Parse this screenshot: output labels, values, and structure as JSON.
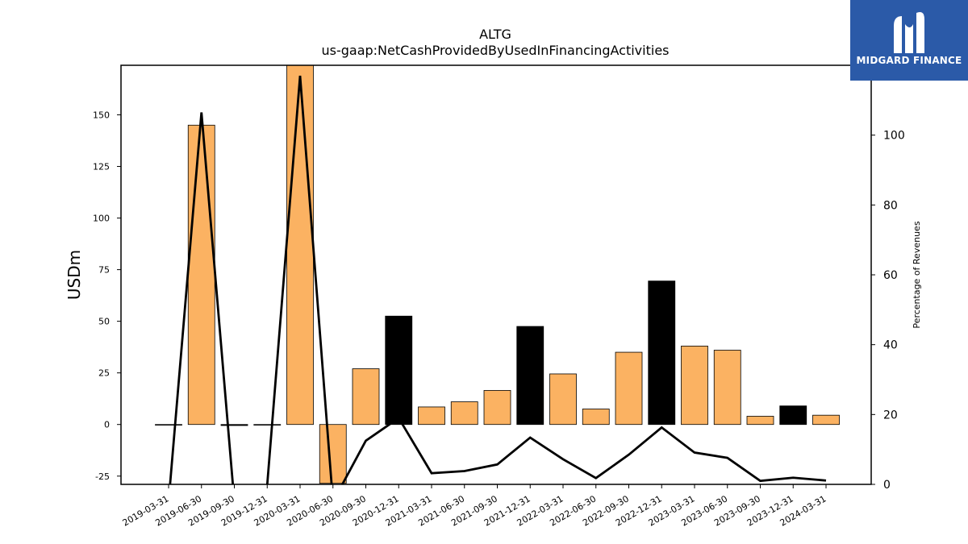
{
  "chart_data": {
    "type": "bar",
    "title": "ALTG",
    "subtitle": "us-gaap:NetCashProvidedByUsedInFinancingActivities",
    "ylabel": "USDm",
    "y2label": "Percentage of Revenues",
    "ylim": [
      -29,
      174
    ],
    "y2lim": [
      0,
      120
    ],
    "yticks": [
      -25,
      0,
      25,
      50,
      75,
      100,
      125,
      150
    ],
    "y2ticks": [
      0,
      20,
      40,
      60,
      80,
      100
    ],
    "categories": [
      "2019-03-31",
      "2019-06-30",
      "2019-09-30",
      "2019-12-31",
      "2020-03-31",
      "2020-06-30",
      "2020-09-30",
      "2020-12-31",
      "2021-03-31",
      "2021-06-30",
      "2021-09-30",
      "2021-12-31",
      "2022-03-31",
      "2022-06-30",
      "2022-09-30",
      "2022-12-31",
      "2023-03-31",
      "2023-06-30",
      "2023-09-30",
      "2023-12-31",
      "2024-03-31"
    ],
    "series": [
      {
        "type": "bar",
        "axis": "left",
        "values": [
          0,
          145,
          -0.5,
          0,
          180,
          -28.5,
          27,
          52.5,
          8.5,
          11,
          16.5,
          47.5,
          24.5,
          7.5,
          35,
          69.5,
          38,
          36,
          4,
          9,
          4.5
        ],
        "colors": [
          "#fbb262",
          "#fbb262",
          "#000000",
          "#fbb262",
          "#fbb262",
          "#fbb262",
          "#fbb262",
          "#000000",
          "#fbb262",
          "#fbb262",
          "#fbb262",
          "#000000",
          "#fbb262",
          "#fbb262",
          "#fbb262",
          "#000000",
          "#fbb262",
          "#fbb262",
          "#fbb262",
          "#000000",
          "#fbb262"
        ]
      },
      {
        "type": "line",
        "axis": "right",
        "values": [
          -5,
          106.5,
          -5,
          -0.2,
          117,
          -5,
          12.5,
          19,
          3.2,
          3.8,
          5.7,
          13.4,
          7.2,
          1.8,
          8.5,
          16.3,
          9.1,
          7.6,
          1,
          1.9,
          1.1
        ]
      }
    ],
    "grid": false,
    "legend": "none"
  },
  "logo": {
    "text": "MIDGARD FINANCE",
    "color": "#2b5aa8"
  }
}
